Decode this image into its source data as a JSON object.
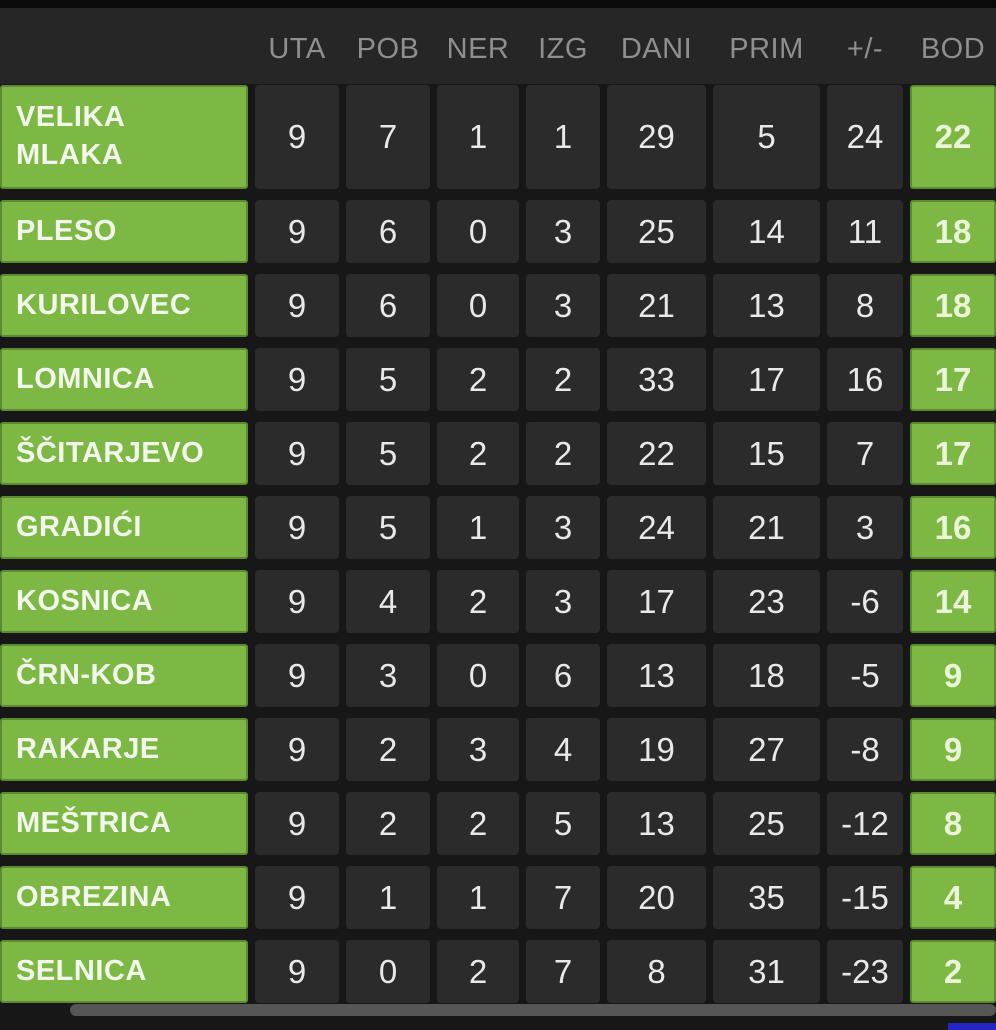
{
  "colors": {
    "accent_green": "#7cb843",
    "tile_dark": "#2b2b2b",
    "background": "#171717",
    "header_text": "#8f8f8f",
    "number_text": "#e9e9e9",
    "team_text": "#f3f8ec",
    "points_text": "#ebf6d9",
    "scrollbar_gray": "#565656",
    "blue_strip": "#2525c4"
  },
  "table": {
    "columns": [
      "UTA",
      "POB",
      "NER",
      "IZG",
      "DANI",
      "PRIM",
      "+/-",
      "BOD"
    ],
    "rows": [
      {
        "team": "VELIKA MLAKA",
        "values": [
          "9",
          "7",
          "1",
          "1",
          "29",
          "5",
          "24"
        ],
        "points": "22"
      },
      {
        "team": "PLESO",
        "values": [
          "9",
          "6",
          "0",
          "3",
          "25",
          "14",
          "11"
        ],
        "points": "18"
      },
      {
        "team": "KURILOVEC",
        "values": [
          "9",
          "6",
          "0",
          "3",
          "21",
          "13",
          "8"
        ],
        "points": "18"
      },
      {
        "team": "LOMNICA",
        "values": [
          "9",
          "5",
          "2",
          "2",
          "33",
          "17",
          "16"
        ],
        "points": "17"
      },
      {
        "team": "ŠČITARJEVO",
        "values": [
          "9",
          "5",
          "2",
          "2",
          "22",
          "15",
          "7"
        ],
        "points": "17"
      },
      {
        "team": "GRADIĆI",
        "values": [
          "9",
          "5",
          "1",
          "3",
          "24",
          "21",
          "3"
        ],
        "points": "16"
      },
      {
        "team": "KOSNICA",
        "values": [
          "9",
          "4",
          "2",
          "3",
          "17",
          "23",
          "-6"
        ],
        "points": "14"
      },
      {
        "team": "ČRN-KOB",
        "values": [
          "9",
          "3",
          "0",
          "6",
          "13",
          "18",
          "-5"
        ],
        "points": "9"
      },
      {
        "team": "RAKARJE",
        "values": [
          "9",
          "2",
          "3",
          "4",
          "19",
          "27",
          "-8"
        ],
        "points": "9"
      },
      {
        "team": "MEŠTRICA",
        "values": [
          "9",
          "2",
          "2",
          "5",
          "13",
          "25",
          "-12"
        ],
        "points": "8"
      },
      {
        "team": "OBREZINA",
        "values": [
          "9",
          "1",
          "1",
          "7",
          "20",
          "35",
          "-15"
        ],
        "points": "4"
      },
      {
        "team": "SELNICA",
        "values": [
          "9",
          "0",
          "2",
          "7",
          "8",
          "31",
          "-23"
        ],
        "points": "2"
      }
    ]
  }
}
